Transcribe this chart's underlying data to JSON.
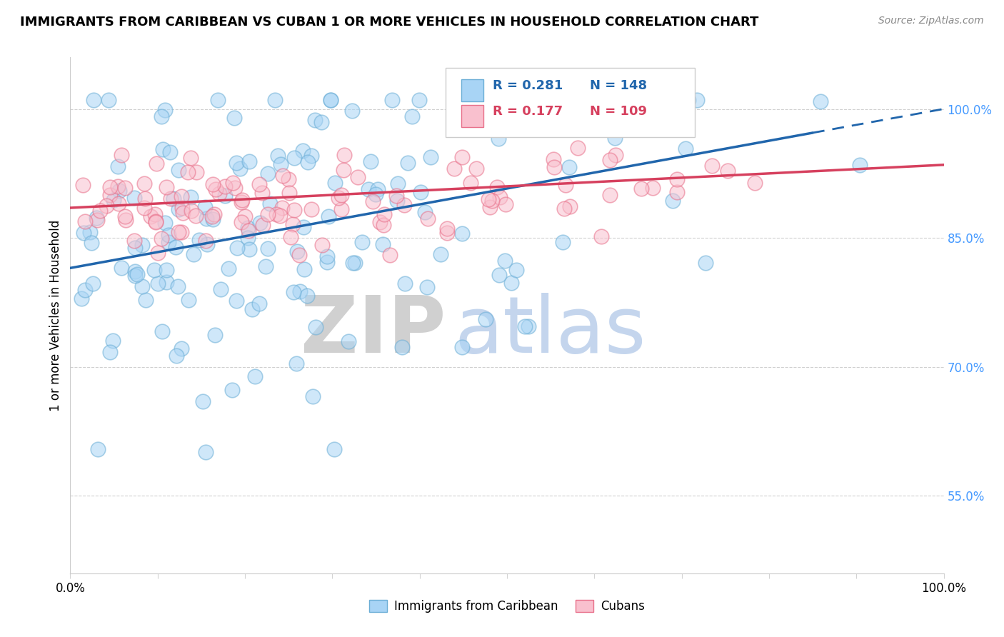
{
  "title": "IMMIGRANTS FROM CARIBBEAN VS CUBAN 1 OR MORE VEHICLES IN HOUSEHOLD CORRELATION CHART",
  "source": "Source: ZipAtlas.com",
  "ylabel": "1 or more Vehicles in Household",
  "ytick_labels": [
    "55.0%",
    "70.0%",
    "85.0%",
    "100.0%"
  ],
  "ytick_values": [
    0.55,
    0.7,
    0.85,
    1.0
  ],
  "xlim": [
    0.0,
    1.0
  ],
  "ylim": [
    0.46,
    1.06
  ],
  "series1_name": "Immigrants from Caribbean",
  "series2_name": "Cubans",
  "series1_color": "#a8d4f5",
  "series1_edge_color": "#6baed6",
  "series2_color": "#f9c0ce",
  "series2_edge_color": "#e8708a",
  "series1_line_color": "#2166ac",
  "series2_line_color": "#d6405e",
  "R1": 0.281,
  "N1": 148,
  "R2": 0.177,
  "N2": 109,
  "background_color": "#ffffff",
  "legend_box_color": "#ffffff",
  "legend_border_color": "#cccccc",
  "ytick_color": "#4499ff",
  "watermark_zip_color": "#c8c8c8",
  "watermark_atlas_color": "#b0c8e8",
  "seed1": 42,
  "seed2": 99,
  "title_fontsize": 13,
  "source_fontsize": 10,
  "tick_fontsize": 12,
  "legend_fontsize": 13,
  "ylabel_fontsize": 12
}
